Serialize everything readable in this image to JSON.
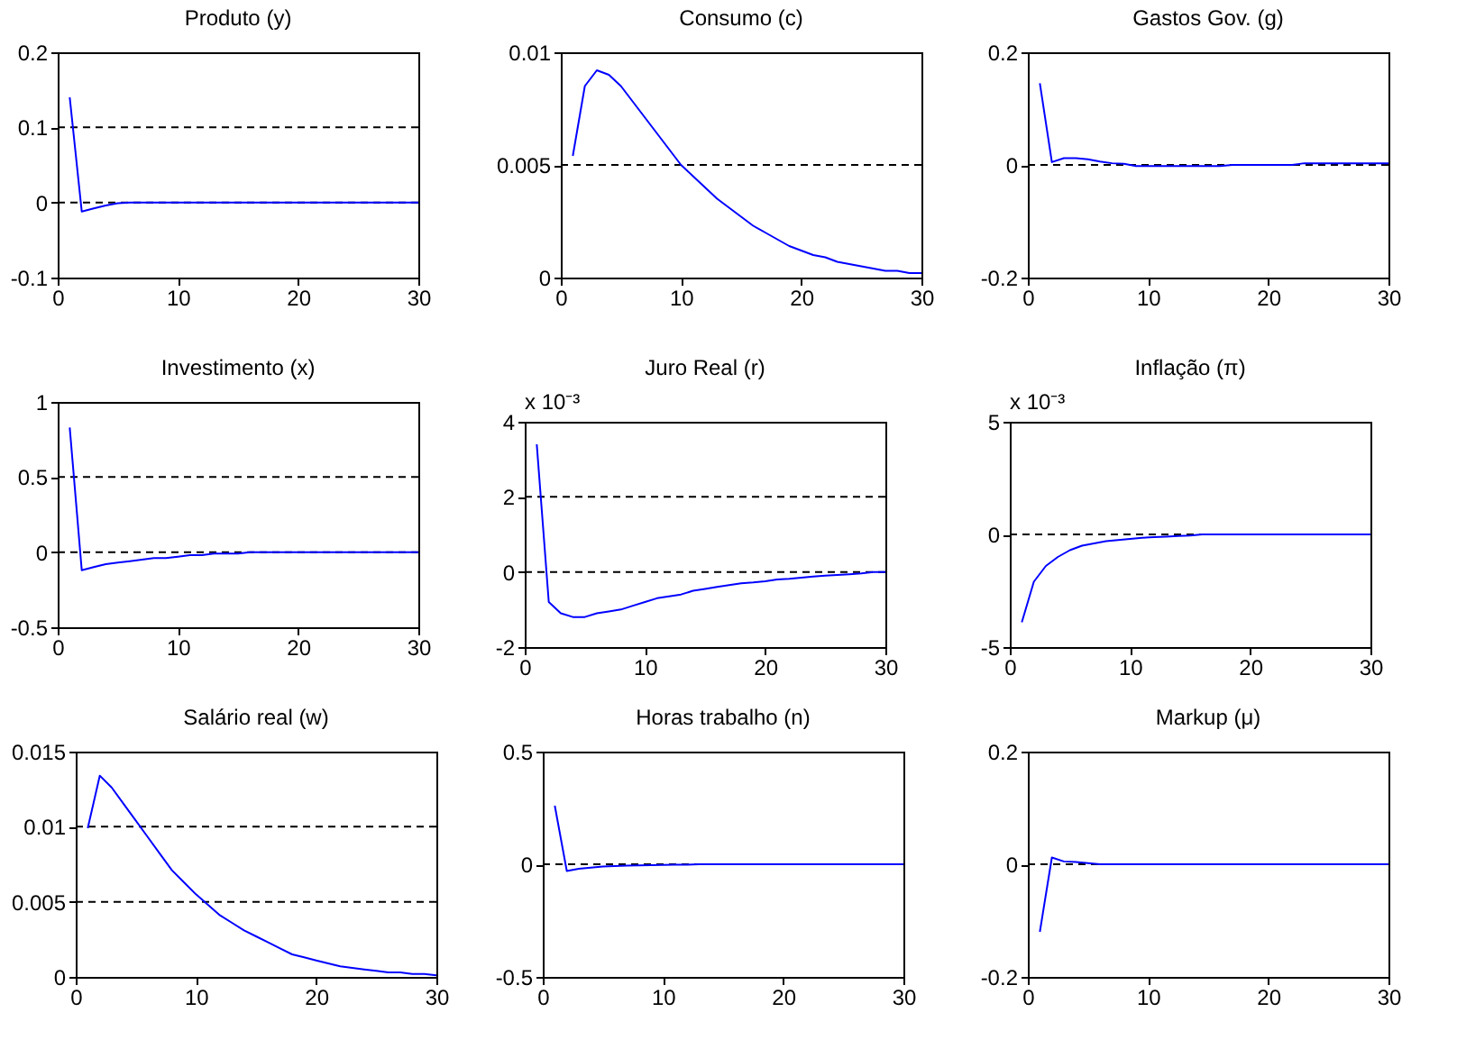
{
  "chart_data": [
    {
      "type": "line",
      "title": "Produto (y)",
      "x": [
        1,
        2,
        3,
        4,
        5,
        6,
        7,
        8,
        9,
        10,
        11,
        12,
        13,
        14,
        15,
        16,
        17,
        18,
        19,
        20,
        21,
        22,
        23,
        24,
        25,
        26,
        27,
        28,
        29,
        30
      ],
      "xlim": [
        0,
        30
      ],
      "xticks": [
        0,
        10,
        20,
        30
      ],
      "ylim": [
        -0.1,
        0.2
      ],
      "yticks": [
        -0.1,
        0,
        0.1,
        0.2
      ],
      "series": [
        {
          "color": "#0000ff",
          "values": [
            0.14,
            -0.012,
            -0.008,
            -0.004,
            -0.001,
            0,
            0,
            0,
            0,
            0,
            0,
            0,
            0,
            0,
            0,
            0,
            0,
            0,
            0,
            0,
            0,
            0,
            0,
            0,
            0,
            0,
            0,
            0,
            0,
            0
          ]
        }
      ],
      "ref_lines": [
        {
          "axis": "y",
          "value": 0.1,
          "color": "#000000",
          "line_style": "dashed"
        },
        {
          "axis": "y",
          "value": 0,
          "color": "#000000",
          "line_style": "dashed"
        }
      ]
    },
    {
      "type": "line",
      "title": "Consumo (c)",
      "x": [
        1,
        2,
        3,
        4,
        5,
        6,
        7,
        8,
        9,
        10,
        11,
        12,
        13,
        14,
        15,
        16,
        17,
        18,
        19,
        20,
        21,
        22,
        23,
        24,
        25,
        26,
        27,
        28,
        29,
        30
      ],
      "xlim": [
        0,
        30
      ],
      "xticks": [
        0,
        10,
        20,
        30
      ],
      "ylim": [
        0,
        0.01
      ],
      "yticks": [
        0,
        0.005,
        0.01
      ],
      "series": [
        {
          "color": "#0000ff",
          "values": [
            0.0054,
            0.0085,
            0.0092,
            0.009,
            0.0085,
            0.0078,
            0.0071,
            0.0064,
            0.0057,
            0.005,
            0.0045,
            0.004,
            0.0035,
            0.0031,
            0.0027,
            0.0023,
            0.002,
            0.0017,
            0.0014,
            0.0012,
            0.001,
            0.0009,
            0.0007,
            0.0006,
            0.0005,
            0.0004,
            0.0003,
            0.0003,
            0.0002,
            0.0002
          ]
        }
      ],
      "ref_lines": [
        {
          "axis": "y",
          "value": 0.005,
          "color": "#000000",
          "line_style": "dashed"
        }
      ]
    },
    {
      "type": "line",
      "title": "Gastos Gov. (g)",
      "x": [
        1,
        2,
        3,
        4,
        5,
        6,
        7,
        8,
        9,
        10,
        11,
        12,
        13,
        14,
        15,
        16,
        17,
        18,
        19,
        20,
        21,
        22,
        23,
        24,
        25,
        26,
        27,
        28,
        29,
        30
      ],
      "xlim": [
        0,
        30
      ],
      "xticks": [
        0,
        10,
        20,
        30
      ],
      "ylim": [
        -0.2,
        0.2
      ],
      "yticks": [
        -0.2,
        0,
        0.2
      ],
      "series": [
        {
          "color": "#0000ff",
          "values": [
            0.145,
            0.005,
            0.012,
            0.012,
            0.01,
            0.006,
            0.003,
            0.002,
            -0.002,
            -0.002,
            -0.002,
            -0.002,
            -0.002,
            -0.002,
            -0.002,
            -0.002,
            0,
            0,
            0,
            0,
            0,
            0,
            0.003,
            0.003,
            0.003,
            0.003,
            0.003,
            0.003,
            0.003,
            0.003
          ]
        }
      ],
      "ref_lines": [
        {
          "axis": "y",
          "value": 0,
          "color": "#000000",
          "line_style": "dashed"
        }
      ]
    },
    {
      "type": "line",
      "title": "Investimento (x)",
      "x": [
        1,
        2,
        3,
        4,
        5,
        6,
        7,
        8,
        9,
        10,
        11,
        12,
        13,
        14,
        15,
        16,
        17,
        18,
        19,
        20,
        21,
        22,
        23,
        24,
        25,
        26,
        27,
        28,
        29,
        30
      ],
      "xlim": [
        0,
        30
      ],
      "xticks": [
        0,
        10,
        20,
        30
      ],
      "ylim": [
        -0.5,
        1
      ],
      "yticks": [
        -0.5,
        0,
        0.5,
        1
      ],
      "series": [
        {
          "color": "#0000ff",
          "values": [
            0.83,
            -0.12,
            -0.1,
            -0.08,
            -0.07,
            -0.06,
            -0.05,
            -0.04,
            -0.04,
            -0.03,
            -0.02,
            -0.02,
            -0.01,
            -0.01,
            -0.01,
            0,
            0,
            0,
            0,
            0,
            0,
            0,
            0,
            0,
            0,
            0,
            0,
            0,
            0,
            0
          ]
        }
      ],
      "ref_lines": [
        {
          "axis": "y",
          "value": 0.5,
          "color": "#000000",
          "line_style": "dashed"
        },
        {
          "axis": "y",
          "value": 0,
          "color": "#000000",
          "line_style": "dashed"
        }
      ]
    },
    {
      "type": "line",
      "title": "Juro Real (r)",
      "annotations": [
        "x 10⁻³"
      ],
      "x": [
        1,
        2,
        3,
        4,
        5,
        6,
        7,
        8,
        9,
        10,
        11,
        12,
        13,
        14,
        15,
        16,
        17,
        18,
        19,
        20,
        21,
        22,
        23,
        24,
        25,
        26,
        27,
        28,
        29,
        30
      ],
      "xlim": [
        0,
        30
      ],
      "xticks": [
        0,
        10,
        20,
        30
      ],
      "ylim": [
        -2,
        4
      ],
      "yticks": [
        -2,
        0,
        2,
        4
      ],
      "series": [
        {
          "color": "#0000ff",
          "values": [
            3.4,
            -0.8,
            -1.1,
            -1.2,
            -1.2,
            -1.1,
            -1.05,
            -1.0,
            -0.9,
            -0.8,
            -0.7,
            -0.65,
            -0.6,
            -0.5,
            -0.45,
            -0.4,
            -0.35,
            -0.3,
            -0.28,
            -0.25,
            -0.2,
            -0.18,
            -0.15,
            -0.12,
            -0.1,
            -0.08,
            -0.06,
            -0.04,
            0,
            0
          ]
        }
      ],
      "ref_lines": [
        {
          "axis": "y",
          "value": 2,
          "color": "#000000",
          "line_style": "dashed"
        },
        {
          "axis": "y",
          "value": 0,
          "color": "#000000",
          "line_style": "dashed"
        }
      ]
    },
    {
      "type": "line",
      "title": "Inflação (π)",
      "annotations": [
        "x 10⁻³"
      ],
      "x": [
        1,
        2,
        3,
        4,
        5,
        6,
        7,
        8,
        9,
        10,
        11,
        12,
        13,
        14,
        15,
        16,
        17,
        18,
        19,
        20,
        21,
        22,
        23,
        24,
        25,
        26,
        27,
        28,
        29,
        30
      ],
      "xlim": [
        0,
        30
      ],
      "xticks": [
        0,
        10,
        20,
        30
      ],
      "ylim": [
        -5,
        5
      ],
      "yticks": [
        -5,
        0,
        5
      ],
      "series": [
        {
          "color": "#0000ff",
          "values": [
            -3.9,
            -2.1,
            -1.4,
            -1.0,
            -0.7,
            -0.5,
            -0.4,
            -0.3,
            -0.25,
            -0.2,
            -0.15,
            -0.12,
            -0.1,
            -0.07,
            -0.05,
            0,
            0,
            0,
            0,
            0,
            0,
            0,
            0,
            0,
            0,
            0,
            0,
            0,
            0,
            0
          ]
        }
      ],
      "ref_lines": [
        {
          "axis": "y",
          "value": 0,
          "color": "#000000",
          "line_style": "dashed"
        }
      ]
    },
    {
      "type": "line",
      "title": "Salário real (w)",
      "x": [
        1,
        2,
        3,
        4,
        5,
        6,
        7,
        8,
        9,
        10,
        11,
        12,
        13,
        14,
        15,
        16,
        17,
        18,
        19,
        20,
        21,
        22,
        23,
        24,
        25,
        26,
        27,
        28,
        29,
        30
      ],
      "xlim": [
        0,
        30
      ],
      "xticks": [
        0,
        10,
        20,
        30
      ],
      "ylim": [
        0,
        0.015
      ],
      "yticks": [
        0,
        0.005,
        0.01,
        0.015
      ],
      "series": [
        {
          "color": "#0000ff",
          "values": [
            0.0099,
            0.0134,
            0.0126,
            0.0115,
            0.0104,
            0.0093,
            0.0082,
            0.0071,
            0.0063,
            0.0055,
            0.0048,
            0.0041,
            0.0036,
            0.0031,
            0.0027,
            0.0023,
            0.0019,
            0.0015,
            0.0013,
            0.0011,
            0.0009,
            0.0007,
            0.0006,
            0.0005,
            0.0004,
            0.0003,
            0.0003,
            0.0002,
            0.0002,
            0.0001
          ]
        }
      ],
      "ref_lines": [
        {
          "axis": "y",
          "value": 0.01,
          "color": "#000000",
          "line_style": "dashed"
        },
        {
          "axis": "y",
          "value": 0.005,
          "color": "#000000",
          "line_style": "dashed"
        }
      ]
    },
    {
      "type": "line",
      "title": "Horas trabalho (n)",
      "x": [
        1,
        2,
        3,
        4,
        5,
        6,
        7,
        8,
        9,
        10,
        11,
        12,
        13,
        14,
        15,
        16,
        17,
        18,
        19,
        20,
        21,
        22,
        23,
        24,
        25,
        26,
        27,
        28,
        29,
        30
      ],
      "xlim": [
        0,
        30
      ],
      "xticks": [
        0,
        10,
        20,
        30
      ],
      "ylim": [
        -0.5,
        0.5
      ],
      "yticks": [
        -0.5,
        0,
        0.5
      ],
      "series": [
        {
          "color": "#0000ff",
          "values": [
            0.26,
            -0.03,
            -0.02,
            -0.015,
            -0.01,
            -0.008,
            -0.006,
            -0.005,
            -0.004,
            -0.003,
            -0.002,
            -0.002,
            0,
            0,
            0,
            0,
            0,
            0,
            0,
            0,
            0,
            0,
            0,
            0,
            0,
            0,
            0,
            0,
            0,
            0
          ]
        }
      ],
      "ref_lines": [
        {
          "axis": "y",
          "value": 0,
          "color": "#000000",
          "line_style": "dashed"
        }
      ]
    },
    {
      "type": "line",
      "title": "Markup (μ)",
      "x": [
        1,
        2,
        3,
        4,
        5,
        6,
        7,
        8,
        9,
        10,
        11,
        12,
        13,
        14,
        15,
        16,
        17,
        18,
        19,
        20,
        21,
        22,
        23,
        24,
        25,
        26,
        27,
        28,
        29,
        30
      ],
      "xlim": [
        0,
        30
      ],
      "xticks": [
        0,
        10,
        20,
        30
      ],
      "ylim": [
        -0.2,
        0.2
      ],
      "yticks": [
        -0.2,
        0,
        0.2
      ],
      "series": [
        {
          "color": "#0000ff",
          "values": [
            -0.12,
            0.012,
            0.005,
            0.004,
            0.002,
            0,
            0,
            0,
            0,
            0,
            0,
            0,
            0,
            0,
            0,
            0,
            0,
            0,
            0,
            0,
            0,
            0,
            0,
            0,
            0,
            0,
            0,
            0,
            0,
            0
          ]
        }
      ],
      "ref_lines": [
        {
          "axis": "y",
          "value": 0,
          "color": "#000000",
          "line_style": "dashed"
        }
      ]
    }
  ]
}
